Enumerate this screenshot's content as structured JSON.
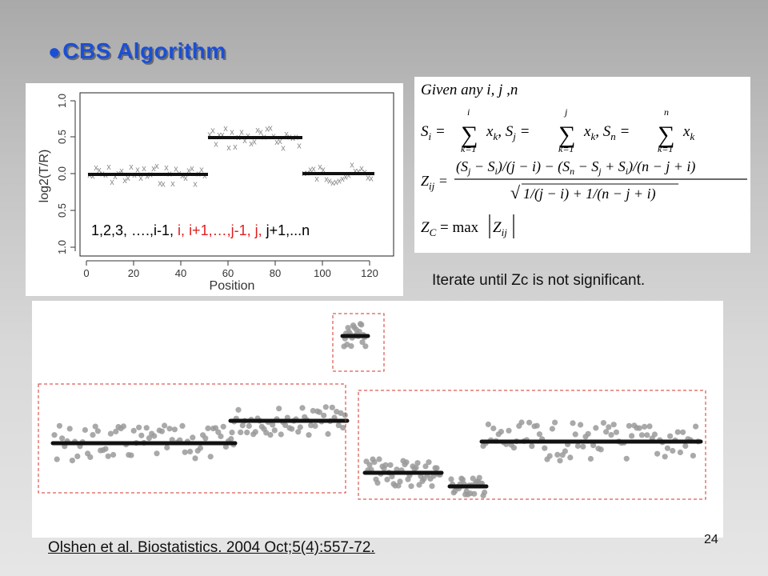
{
  "title": "CBS Algorithm",
  "top_plot": {
    "ylabel": "log2(T/R)",
    "xlabel": "Position",
    "xticks": [
      "0",
      "20",
      "40",
      "60",
      "80",
      "100",
      "120"
    ],
    "yticks": [
      "1.0",
      "0.5",
      "0.0",
      "0.5",
      "1.0"
    ],
    "index_seq": [
      {
        "text": "1,2,3, ….,i-1, ",
        "color": "#111111"
      },
      {
        "text": "i, ",
        "color": "#e02020"
      },
      {
        "text": "i+1,…,j-1,",
        "color": "#e02020"
      },
      {
        "text": "j, ",
        "color": "#e02020"
      },
      {
        "text": "j+1,...n",
        "color": "#111111"
      }
    ]
  },
  "formulas": {
    "given": "Given   any   i, j ,n",
    "z_c": "Z_C = max|Z_ij|"
  },
  "iterate_note": "Iterate until Zc is not significant.",
  "page_number": "24",
  "citation": "Olshen et al. Biostatistics. 2004 Oct;5(4):557-72.",
  "colors": {
    "title": "#1a4fd6",
    "red_text": "#e02020",
    "dashed_box": "#d0342c",
    "segment": "#111111",
    "point_gray": "#8a8a8a"
  }
}
